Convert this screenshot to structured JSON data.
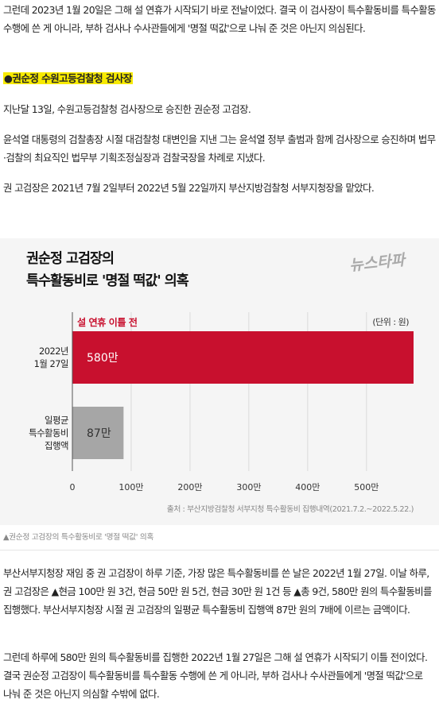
{
  "article": {
    "para_intro": "그런데 2023년 1월 20일은 그해 설 연휴가 시작되기 바로 전날이었다. 결국 이 검사장이 특수활동비를 특수활동 수행에 쓴 게 아니라, 부하 검사나 수사관들에게 '명절 떡값'으로 나눠 준 것은 아닌지 의심된다.",
    "subheading": "●권순정 수원고등검찰청 검사장",
    "para_1": "지난달 13일, 수원고등검찰청 검사장으로 승진한 권순정 고검장.",
    "para_2": "윤석열 대통령의 검찰총장 시절 대검찰청 대변인을 지낸 그는 윤석열 정부 출범과 함께 검사장으로 승진하며 법무·검찰의 최요직인 법무부 기획조정실장과 검찰국장을 차례로 지냈다.",
    "para_3": "권 고검장은 2021년 7월 2일부터 2022년 5월 22일까지 부산지방검찰청 서부지청장을 맡았다.",
    "caption": "▲권순정 고검장의 특수활동비로 '명절 떡값' 의혹",
    "para_4": "부산서부지청장 재임 중 권 고검장이 하루 기준, 가장 많은 특수활동비를 쓴 날은 2022년 1월 27일. 이날 하루, 권 고검장은 ▲현금 100만 원 3건, 현금 50만 원 5건, 현금 30만 원 1건 등 ▲총 9건, 580만 원의 특수활동비를 집행했다. 부산서부지청장 시절 권 고검장의 일평균 특수활동비 집행액 87만 원의 7배에 이르는 금액이다.",
    "para_5": "그런데 하루에 580만 원의 특수활동비를 집행한 2022년 1월 27일은 그해 설 연휴가 시작되기 이틀 전이었다. 결국 권순정 고검장이 특수활동비를 특수활동 수행에 쓴 게 아니라, 부하 검사나 수사관들에게 '명절 떡값'으로 나눠 준 것은 아닌지 의심할 수밖에 없다."
  },
  "chart_card": {
    "logo_text": "뉴스타파",
    "colors": {
      "highlight_bar": "#c8102e",
      "other_bar": "#a6a6a6",
      "annotation": "#c8102e",
      "background": "#f5f5f5"
    }
  },
  "chart_data": {
    "type": "bar",
    "orientation": "horizontal",
    "title_line1": "권순정 고검장의",
    "title_line2": "특수활동비로 '명절 떡값' 의혹",
    "annotation": "설 연휴 이틀 전",
    "unit_label": "(단위 : 원)",
    "categories": [
      {
        "lines": [
          "2022년",
          "1월 27일"
        ]
      },
      {
        "lines": [
          "일평균",
          "특수활동비",
          "집행액"
        ]
      }
    ],
    "values": [
      5800000,
      870000
    ],
    "value_labels": [
      "580만",
      "87만"
    ],
    "xlim": [
      0,
      5800000
    ],
    "xticks": [
      0,
      1000000,
      2000000,
      3000000,
      4000000,
      5000000
    ],
    "xtick_labels": [
      "0",
      "100만",
      "200만",
      "300만",
      "400만",
      "500만"
    ],
    "grid": true,
    "source": "출처 : 부산지방검찰청 서부지청 특수활동비 집행내역(2021.7.2.~2022.5.22.)"
  }
}
